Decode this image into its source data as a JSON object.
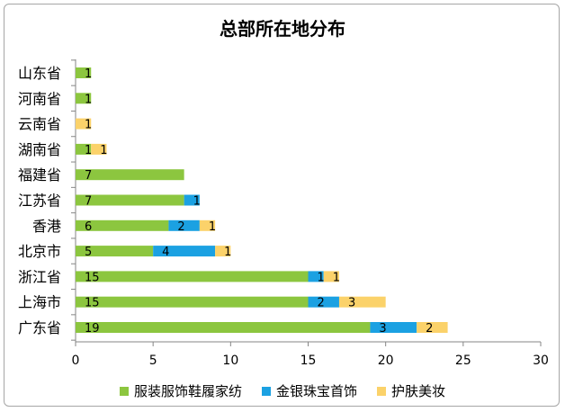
{
  "chart_data": {
    "type": "bar",
    "orientation": "horizontal",
    "stacked": true,
    "title": "总部所在地分布",
    "categories": [
      "山东省",
      "河南省",
      "云南省",
      "湖南省",
      "福建省",
      "江苏省",
      "香港",
      "北京市",
      "浙江省",
      "上海市",
      "广东省"
    ],
    "series": [
      {
        "name": "服装服饰鞋履家纺",
        "color": "#8cc63f",
        "values": [
          1,
          1,
          0,
          1,
          7,
          7,
          6,
          5,
          15,
          15,
          19
        ]
      },
      {
        "name": "金银珠宝首饰",
        "color": "#1ba1e2",
        "values": [
          0,
          0,
          0,
          0,
          0,
          1,
          2,
          4,
          1,
          2,
          3
        ]
      },
      {
        "name": "护肤美妆",
        "color": "#fbd26a",
        "values": [
          0,
          0,
          1,
          1,
          0,
          0,
          1,
          1,
          1,
          3,
          2
        ]
      }
    ],
    "xlim": [
      0,
      30
    ],
    "xticks": [
      0,
      5,
      10,
      15,
      20,
      25,
      30
    ],
    "legend_position": "bottom",
    "grid": false
  }
}
